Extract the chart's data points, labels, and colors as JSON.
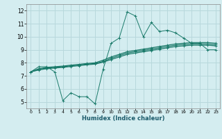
{
  "xlabel": "Humidex (Indice chaleur)",
  "background_color": "#d4edf0",
  "grid_color": "#b8d8dc",
  "line_color": "#1a7a6a",
  "xlim": [
    -0.5,
    23.5
  ],
  "ylim": [
    4.5,
    12.5
  ],
  "xticks": [
    0,
    1,
    2,
    3,
    4,
    5,
    6,
    7,
    8,
    9,
    10,
    11,
    12,
    13,
    14,
    15,
    16,
    17,
    18,
    19,
    20,
    21,
    22,
    23
  ],
  "yticks": [
    5,
    6,
    7,
    8,
    9,
    10,
    11,
    12
  ],
  "line1_x": [
    0,
    1,
    2,
    3,
    4,
    5,
    6,
    7,
    8,
    9,
    10,
    11,
    12,
    13,
    14,
    15,
    16,
    17,
    18,
    19,
    20,
    21,
    22,
    23
  ],
  "line1_y": [
    7.3,
    7.7,
    7.7,
    7.3,
    5.1,
    5.7,
    5.4,
    5.4,
    4.85,
    7.5,
    9.5,
    9.9,
    11.9,
    11.6,
    10.0,
    11.1,
    10.4,
    10.5,
    10.3,
    9.9,
    9.5,
    9.5,
    9.0,
    9.0
  ],
  "line2_x": [
    0,
    1,
    2,
    3,
    4,
    5,
    6,
    7,
    8,
    9,
    10,
    11,
    12,
    13,
    14,
    15,
    16,
    17,
    18,
    19,
    20,
    21,
    22,
    23
  ],
  "line2_y": [
    7.3,
    7.55,
    7.65,
    7.7,
    7.75,
    7.82,
    7.88,
    7.95,
    8.0,
    8.2,
    8.45,
    8.65,
    8.85,
    8.95,
    9.05,
    9.15,
    9.25,
    9.35,
    9.45,
    9.5,
    9.55,
    9.55,
    9.55,
    9.5
  ],
  "line3_x": [
    0,
    1,
    2,
    3,
    4,
    5,
    6,
    7,
    8,
    9,
    10,
    11,
    12,
    13,
    14,
    15,
    16,
    17,
    18,
    19,
    20,
    21,
    22,
    23
  ],
  "line3_y": [
    7.3,
    7.5,
    7.6,
    7.65,
    7.7,
    7.77,
    7.83,
    7.9,
    7.95,
    8.1,
    8.35,
    8.55,
    8.75,
    8.85,
    8.95,
    9.05,
    9.15,
    9.25,
    9.35,
    9.4,
    9.45,
    9.45,
    9.45,
    9.4
  ],
  "line4_x": [
    0,
    1,
    2,
    3,
    4,
    5,
    6,
    7,
    8,
    9,
    10,
    11,
    12,
    13,
    14,
    15,
    16,
    17,
    18,
    19,
    20,
    21,
    22,
    23
  ],
  "line4_y": [
    7.3,
    7.45,
    7.55,
    7.6,
    7.65,
    7.72,
    7.78,
    7.85,
    7.9,
    8.05,
    8.25,
    8.45,
    8.65,
    8.75,
    8.85,
    8.95,
    9.05,
    9.15,
    9.25,
    9.3,
    9.35,
    9.35,
    9.35,
    9.3
  ]
}
